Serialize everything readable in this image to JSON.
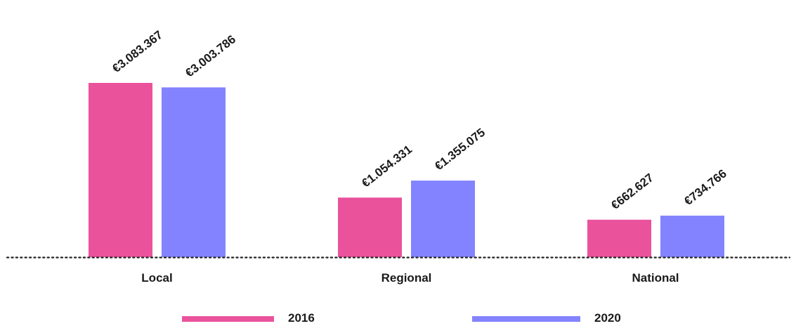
{
  "chart_data": {
    "type": "bar",
    "title": "",
    "xlabel": "",
    "ylabel": "",
    "categories": [
      "Local",
      "Regional",
      "National"
    ],
    "series": [
      {
        "name": "2016",
        "color": "#EA529C",
        "values": [
          3083367,
          1054331,
          662627
        ],
        "labels": [
          "€3.083.367",
          "€1.054.331",
          "€662.627"
        ]
      },
      {
        "name": "2020",
        "color": "#8383FF",
        "values": [
          3003786,
          1355075,
          734766
        ],
        "labels": [
          "€3.003.786",
          "€1.355.075",
          "€734.766"
        ]
      }
    ],
    "ylim": [
      0,
      3083367
    ],
    "grid": false,
    "legend_position": "bottom",
    "axis_line_style": "dotted"
  }
}
